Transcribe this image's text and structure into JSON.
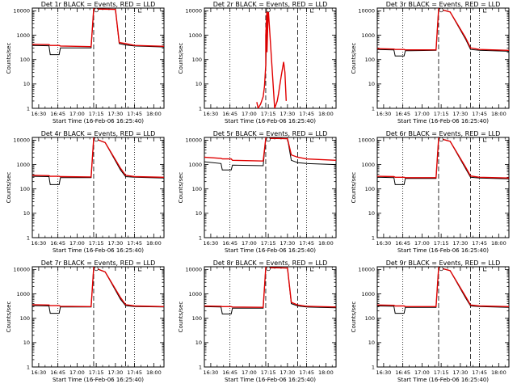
{
  "colors": {
    "events": "#000000",
    "lld": "#e00000",
    "background": "#ffffff"
  },
  "chart_data": [
    {
      "type": "line",
      "title": "Det 1r BLACK = Events, RED = LLD",
      "xlabel": "Start Time (16-Feb-06 16:25:40)",
      "ylabel": "Counts/sec",
      "yscale": "log",
      "ylim": [
        1,
        13000
      ],
      "xlim": [
        "16:25",
        "18:08"
      ],
      "xticks": [
        "16:30",
        "16:45",
        "17:00",
        "17:15",
        "17:30",
        "17:45",
        "18:00"
      ],
      "yticks": [
        "1",
        "10",
        "100",
        "1000",
        "10000"
      ],
      "markers": {
        "dotted": [
          "16:45",
          "17:45"
        ],
        "dashed": [
          "17:13",
          "17:38"
        ]
      },
      "series": [
        {
          "name": "Events",
          "color": "#000000",
          "x": [
            "16:25",
            "16:38",
            "16:39",
            "16:46",
            "16:47",
            "17:11",
            "17:13",
            "17:30",
            "17:33",
            "17:38",
            "17:45",
            "18:08"
          ],
          "y": [
            380,
            370,
            160,
            160,
            300,
            300,
            12000,
            11500,
            450,
            400,
            360,
            330
          ]
        },
        {
          "name": "LLD",
          "color": "#e00000",
          "x": [
            "16:25",
            "16:38",
            "16:39",
            "16:46",
            "16:47",
            "17:11",
            "17:13",
            "17:30",
            "17:33",
            "17:38",
            "17:45",
            "18:08"
          ],
          "y": [
            420,
            410,
            380,
            380,
            360,
            340,
            12000,
            11500,
            500,
            450,
            380,
            350
          ]
        }
      ]
    },
    {
      "type": "line",
      "title": "Det 2r BLACK = Events, RED = LLD",
      "xlabel": "Start Time (16-Feb-06 16:25:40)",
      "ylabel": "Counts/sec",
      "yscale": "log",
      "ylim": [
        1,
        13000
      ],
      "xlim": [
        "16:25",
        "18:08"
      ],
      "xticks": [
        "16:30",
        "16:45",
        "17:00",
        "17:15",
        "17:30",
        "17:45",
        "18:00"
      ],
      "yticks": [
        "1",
        "10",
        "100",
        "1000",
        "10000"
      ],
      "markers": {
        "dotted": [
          "16:45",
          "17:45"
        ],
        "dashed": [
          "17:13",
          "17:38"
        ]
      },
      "series": [
        {
          "name": "Events",
          "color": "#000000",
          "x": [
            "17:13",
            "17:13",
            "17:14"
          ],
          "y": [
            1000,
            40,
            8000
          ]
        },
        {
          "name": "LLD",
          "color": "#e00000",
          "x": [
            "17:06",
            "17:07",
            "17:09",
            "17:11",
            "17:12",
            "17:13",
            "17:13",
            "17:14",
            "17:14",
            "17:15",
            "17:20",
            "17:22",
            "17:23",
            "17:25",
            "17:27",
            "17:28",
            "17:29"
          ],
          "y": [
            1.8,
            1,
            1.5,
            3,
            8,
            60,
            1000,
            12000,
            200,
            12000,
            1,
            2,
            4,
            20,
            80,
            30,
            2
          ]
        }
      ]
    },
    {
      "type": "line",
      "title": "Det 3r BLACK = Events, RED = LLD",
      "xlabel": "Start Time (16-Feb-06 16:25:40)",
      "ylabel": "Counts/sec",
      "yscale": "log",
      "ylim": [
        1,
        13000
      ],
      "xlim": [
        "16:25",
        "18:08"
      ],
      "xticks": [
        "16:30",
        "16:45",
        "17:00",
        "17:15",
        "17:30",
        "17:45",
        "18:00"
      ],
      "yticks": [
        "1",
        "10",
        "100",
        "1000",
        "10000"
      ],
      "markers": {
        "dotted": [
          "16:45",
          "17:45"
        ],
        "dashed": [
          "17:13",
          "17:38"
        ]
      },
      "series": [
        {
          "name": "Events",
          "color": "#000000",
          "x": [
            "16:25",
            "16:38",
            "16:39",
            "16:46",
            "16:47",
            "17:11",
            "17:13",
            "17:22",
            "17:34",
            "17:38",
            "17:45",
            "18:08"
          ],
          "y": [
            260,
            250,
            140,
            140,
            230,
            240,
            12000,
            9000,
            700,
            260,
            240,
            220
          ]
        },
        {
          "name": "LLD",
          "color": "#e00000",
          "x": [
            "16:25",
            "16:38",
            "16:39",
            "16:46",
            "16:47",
            "17:11",
            "17:13",
            "17:22",
            "17:34",
            "17:38",
            "17:45",
            "18:08"
          ],
          "y": [
            280,
            270,
            260,
            260,
            250,
            250,
            12000,
            9000,
            800,
            300,
            260,
            240
          ]
        }
      ]
    },
    {
      "type": "line",
      "title": "Det 4r BLACK = Events, RED = LLD",
      "xlabel": "Start Time (16-Feb-06 16:25:40)",
      "ylabel": "Counts/sec",
      "yscale": "log",
      "ylim": [
        1,
        13000
      ],
      "xlim": [
        "16:25",
        "18:08"
      ],
      "xticks": [
        "16:30",
        "16:45",
        "17:00",
        "17:15",
        "17:30",
        "17:45",
        "18:00"
      ],
      "yticks": [
        "1",
        "10",
        "100",
        "1000",
        "10000"
      ],
      "markers": {
        "dotted": [
          "16:45",
          "17:45"
        ],
        "dashed": [
          "17:13",
          "17:38"
        ]
      },
      "series": [
        {
          "name": "Events",
          "color": "#000000",
          "x": [
            "16:25",
            "16:38",
            "16:39",
            "16:46",
            "16:47",
            "17:11",
            "17:13",
            "17:22",
            "17:34",
            "17:38",
            "17:45",
            "18:08"
          ],
          "y": [
            330,
            320,
            150,
            150,
            290,
            290,
            12000,
            8000,
            600,
            320,
            300,
            280
          ]
        },
        {
          "name": "LLD",
          "color": "#e00000",
          "x": [
            "16:25",
            "16:38",
            "16:39",
            "16:46",
            "16:47",
            "17:11",
            "17:13",
            "17:22",
            "17:34",
            "17:38",
            "17:45",
            "18:08"
          ],
          "y": [
            360,
            350,
            330,
            330,
            320,
            310,
            12000,
            8000,
            700,
            360,
            320,
            300
          ]
        }
      ]
    },
    {
      "type": "line",
      "title": "Det 5r BLACK = Events, RED = LLD",
      "xlabel": "Start Time (16-Feb-06 16:25:40)",
      "ylabel": "Counts/sec",
      "yscale": "log",
      "ylim": [
        1,
        13000
      ],
      "xlim": [
        "16:25",
        "18:08"
      ],
      "xticks": [
        "16:30",
        "16:45",
        "17:00",
        "17:15",
        "17:30",
        "17:45",
        "18:00"
      ],
      "yticks": [
        "1",
        "10",
        "100",
        "1000",
        "10000"
      ],
      "markers": {
        "dotted": [
          "16:45",
          "17:45"
        ],
        "dashed": [
          "17:13",
          "17:38"
        ]
      },
      "series": [
        {
          "name": "Events",
          "color": "#000000",
          "x": [
            "16:25",
            "16:38",
            "16:39",
            "16:46",
            "16:47",
            "17:11",
            "17:13",
            "17:30",
            "17:33",
            "17:38",
            "17:45",
            "18:08"
          ],
          "y": [
            1300,
            1100,
            600,
            600,
            950,
            900,
            12000,
            11500,
            1500,
            1200,
            1100,
            1000
          ]
        },
        {
          "name": "LLD",
          "color": "#e00000",
          "x": [
            "16:25",
            "16:38",
            "16:39",
            "16:46",
            "16:47",
            "17:11",
            "17:13",
            "17:30",
            "17:33",
            "17:38",
            "17:45",
            "18:08"
          ],
          "y": [
            2000,
            1800,
            1700,
            1700,
            1500,
            1400,
            12000,
            11500,
            2500,
            2000,
            1700,
            1500
          ]
        }
      ]
    },
    {
      "type": "line",
      "title": "Det 6r BLACK = Events, RED = LLD",
      "xlabel": "Start Time (16-Feb-06 16:25:40)",
      "ylabel": "Counts/sec",
      "yscale": "log",
      "ylim": [
        1,
        13000
      ],
      "xlim": [
        "16:25",
        "18:08"
      ],
      "xticks": [
        "16:30",
        "16:45",
        "17:00",
        "17:15",
        "17:30",
        "17:45",
        "18:00"
      ],
      "yticks": [
        "1",
        "10",
        "100",
        "1000",
        "10000"
      ],
      "markers": {
        "dotted": [
          "16:45",
          "17:45"
        ],
        "dashed": [
          "17:13",
          "17:38"
        ]
      },
      "series": [
        {
          "name": "Events",
          "color": "#000000",
          "x": [
            "16:25",
            "16:38",
            "16:39",
            "16:46",
            "16:47",
            "17:11",
            "17:13",
            "17:22",
            "17:34",
            "17:38",
            "17:45",
            "18:08"
          ],
          "y": [
            300,
            290,
            150,
            150,
            270,
            270,
            12000,
            9000,
            700,
            300,
            280,
            260
          ]
        },
        {
          "name": "LLD",
          "color": "#e00000",
          "x": [
            "16:25",
            "16:38",
            "16:39",
            "16:46",
            "16:47",
            "17:11",
            "17:13",
            "17:22",
            "17:34",
            "17:38",
            "17:45",
            "18:08"
          ],
          "y": [
            330,
            320,
            300,
            300,
            290,
            290,
            12000,
            9000,
            800,
            340,
            300,
            280
          ]
        }
      ]
    },
    {
      "type": "line",
      "title": "Det 7r BLACK = Events, RED = LLD",
      "xlabel": "Start Time (16-Feb-06 16:25:40)",
      "ylabel": "Counts/sec",
      "yscale": "log",
      "ylim": [
        1,
        13000
      ],
      "xlim": [
        "16:25",
        "18:08"
      ],
      "xticks": [
        "16:30",
        "16:45",
        "17:00",
        "17:15",
        "17:30",
        "17:45",
        "18:00"
      ],
      "yticks": [
        "1",
        "10",
        "100",
        "1000",
        "10000"
      ],
      "markers": {
        "dotted": [
          "16:45",
          "17:45"
        ],
        "dashed": [
          "17:13",
          "17:38"
        ]
      },
      "series": [
        {
          "name": "Events",
          "color": "#000000",
          "x": [
            "16:25",
            "16:38",
            "16:39",
            "16:46",
            "16:47",
            "17:11",
            "17:13",
            "17:22",
            "17:34",
            "17:38",
            "17:45",
            "18:08"
          ],
          "y": [
            330,
            320,
            160,
            160,
            290,
            290,
            12000,
            8000,
            600,
            330,
            300,
            290
          ]
        },
        {
          "name": "LLD",
          "color": "#e00000",
          "x": [
            "16:25",
            "16:38",
            "16:39",
            "16:46",
            "16:47",
            "17:11",
            "17:13",
            "17:22",
            "17:34",
            "17:38",
            "17:45",
            "18:08"
          ],
          "y": [
            360,
            350,
            330,
            330,
            310,
            300,
            12000,
            8000,
            700,
            360,
            320,
            300
          ]
        }
      ]
    },
    {
      "type": "line",
      "title": "Det 8r BLACK = Events, RED = LLD",
      "xlabel": "Start Time (16-Feb-06 16:25:40)",
      "ylabel": "Counts/sec",
      "yscale": "log",
      "ylim": [
        1,
        13000
      ],
      "xlim": [
        "16:25",
        "18:08"
      ],
      "xticks": [
        "16:30",
        "16:45",
        "17:00",
        "17:15",
        "17:30",
        "17:45",
        "18:00"
      ],
      "yticks": [
        "1",
        "10",
        "100",
        "1000",
        "10000"
      ],
      "markers": {
        "dotted": [
          "16:45",
          "17:45"
        ],
        "dashed": [
          "17:13",
          "17:38"
        ]
      },
      "series": [
        {
          "name": "Events",
          "color": "#000000",
          "x": [
            "16:25",
            "16:38",
            "16:39",
            "16:46",
            "16:47",
            "17:11",
            "17:13",
            "17:30",
            "17:33",
            "17:38",
            "17:45",
            "18:08"
          ],
          "y": [
            300,
            290,
            150,
            150,
            260,
            260,
            12000,
            11500,
            400,
            320,
            290,
            270
          ]
        },
        {
          "name": "LLD",
          "color": "#e00000",
          "x": [
            "16:25",
            "16:38",
            "16:39",
            "16:46",
            "16:47",
            "17:11",
            "17:13",
            "17:30",
            "17:33",
            "17:38",
            "17:45",
            "18:08"
          ],
          "y": [
            320,
            310,
            300,
            300,
            290,
            280,
            12000,
            11500,
            450,
            350,
            310,
            290
          ]
        }
      ]
    },
    {
      "type": "line",
      "title": "Det 9r BLACK = Events, RED = LLD",
      "xlabel": "Start Time (16-Feb-06 16:25:40)",
      "ylabel": "Counts/sec",
      "yscale": "log",
      "ylim": [
        1,
        13000
      ],
      "xlim": [
        "16:25",
        "18:08"
      ],
      "xticks": [
        "16:30",
        "16:45",
        "17:00",
        "17:15",
        "17:30",
        "17:45",
        "18:00"
      ],
      "yticks": [
        "1",
        "10",
        "100",
        "1000",
        "10000"
      ],
      "markers": {
        "dotted": [
          "16:45",
          "17:45"
        ],
        "dashed": [
          "17:13",
          "17:38"
        ]
      },
      "series": [
        {
          "name": "Events",
          "color": "#000000",
          "x": [
            "16:25",
            "16:38",
            "16:39",
            "16:46",
            "16:47",
            "17:11",
            "17:13",
            "17:22",
            "17:34",
            "17:38",
            "17:45",
            "18:08"
          ],
          "y": [
            320,
            310,
            160,
            160,
            280,
            280,
            12000,
            9000,
            700,
            320,
            300,
            280
          ]
        },
        {
          "name": "LLD",
          "color": "#e00000",
          "x": [
            "16:25",
            "16:38",
            "16:39",
            "16:46",
            "16:47",
            "17:11",
            "17:13",
            "17:22",
            "17:34",
            "17:38",
            "17:45",
            "18:08"
          ],
          "y": [
            350,
            340,
            320,
            320,
            300,
            300,
            12000,
            9000,
            800,
            350,
            320,
            300
          ]
        }
      ]
    }
  ]
}
